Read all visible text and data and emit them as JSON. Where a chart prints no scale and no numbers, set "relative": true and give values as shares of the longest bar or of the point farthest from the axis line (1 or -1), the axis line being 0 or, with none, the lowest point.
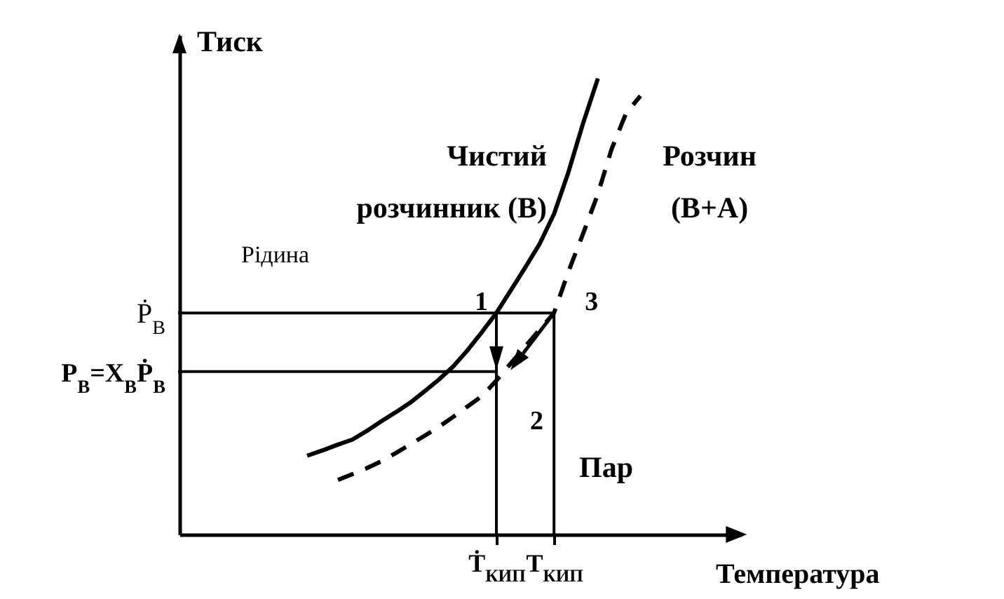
{
  "chart_data": {
    "type": "line",
    "relative": true,
    "xlabel": "Температура",
    "ylabel": "Тиск",
    "categories": [
      null,
      null,
      null,
      null,
      null,
      null,
      null,
      null,
      null,
      null,
      null,
      null,
      null,
      null,
      null,
      null,
      null,
      null,
      null,
      null,
      null,
      null,
      "Ṫ$_{КИП}$",
      null,
      null,
      null,
      "T$_{КИП}$",
      null,
      null,
      null,
      null,
      null,
      null,
      null,
      null,
      null,
      null,
      null,
      null,
      null
    ],
    "series": [
      {
        "name": "Чистий розчинник (В)",
        "color": "#000000",
        "line_style": "solid",
        "values": [
          null,
          null,
          null,
          null,
          null,
          null,
          null,
          null,
          null,
          0.175,
          0.186,
          0.198,
          0.209,
          0.228,
          0.249,
          0.269,
          0.29,
          0.315,
          0.341,
          0.37,
          0.406,
          0.446,
          0.488,
          0.538,
          0.588,
          0.64,
          0.706,
          0.798,
          0.904,
          1.0,
          null,
          null,
          null,
          null,
          null,
          null,
          null,
          null,
          null,
          null
        ]
      },
      {
        "name": "Розчин (В+А)",
        "color": "#000000",
        "line_style": "dashed",
        "values": [
          null,
          null,
          null,
          null,
          null,
          null,
          null,
          null,
          null,
          null,
          null,
          0.12,
          0.133,
          0.146,
          0.161,
          0.179,
          0.198,
          0.217,
          0.237,
          0.259,
          0.282,
          0.305,
          0.339,
          0.377,
          0.414,
          0.451,
          0.488,
          0.579,
          0.661,
          0.746,
          0.849,
          0.928,
          0.966,
          null,
          null,
          null,
          null,
          null,
          null,
          null
        ]
      },
      {
        "color": "#000000",
        "values": [
          0.488,
          0.488,
          0.488,
          0.488,
          0.488,
          0.488,
          0.488,
          0.488,
          0.488,
          0.488,
          0.488,
          0.488,
          0.488,
          0.488,
          0.488,
          0.488,
          0.488,
          0.488,
          0.488,
          0.488,
          0.488,
          0.488,
          0.488,
          0.488,
          0.488,
          0.488,
          0.488,
          null,
          null,
          null,
          null,
          null,
          null,
          null,
          null,
          null,
          null,
          null,
          null,
          null
        ]
      },
      {
        "color": "#000000",
        "values": [
          0.359,
          0.359,
          0.359,
          0.359,
          0.359,
          0.359,
          0.359,
          0.359,
          0.359,
          0.359,
          0.359,
          0.359,
          0.359,
          0.359,
          0.359,
          0.359,
          0.359,
          0.359,
          0.359,
          0.359,
          0.359,
          0.359,
          0.359,
          null,
          null,
          null,
          null,
          null,
          null,
          null,
          null,
          null,
          null,
          null,
          null,
          null,
          null,
          null,
          null,
          null
        ]
      },
      {
        "color": "#000000",
        "x": [
          "Ṫ$_{КИП}$",
          "Ṫ$_{КИП}$"
        ],
        "values": [
          0,
          0.488
        ]
      },
      {
        "color": "#000000",
        "x": [
          "T$_{КИП}$",
          "T$_{КИП}$"
        ],
        "values": [
          0,
          0.488
        ]
      }
    ],
    "annotations": [
      "Ṗ$_{B}$",
      "P$_{B}$=X$_{B}$Ṗ$_{B}$",
      {
        "text": "1",
        "x": "Ṫ$_{КИП}$",
        "y": 0.488
      },
      {
        "text": "2",
        "x": "Ṫ$_{КИП}$",
        "y": 0.359
      },
      {
        "text": "3",
        "x": "T$_{КИП}$",
        "y": 0.488
      },
      "Рідина",
      "Пар"
    ]
  }
}
